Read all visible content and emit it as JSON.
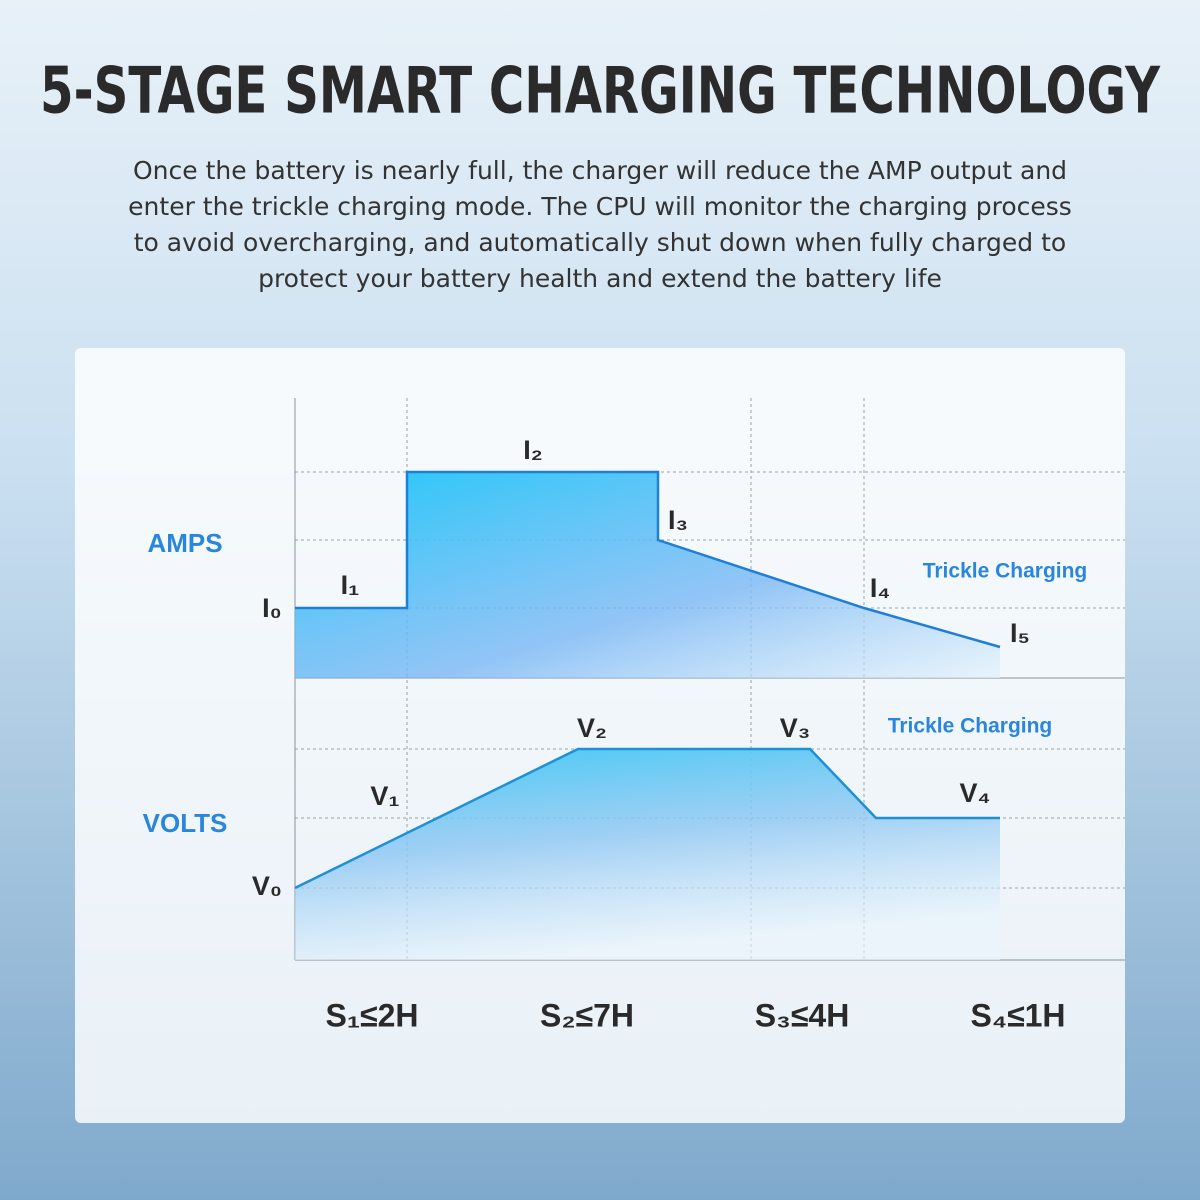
{
  "header": {
    "title": "5-STAGE SMART CHARGING TECHNOLOGY",
    "description": [
      "Once the battery is nearly full, the charger will reduce the AMP output and",
      "enter the trickle charging mode. The CPU will monitor the charging process",
      "to avoid overcharging, and automatically shut down when fully charged to",
      "protect your battery health and extend the battery life"
    ]
  },
  "diagram": {
    "amps": {
      "label": "AMPS",
      "points": [
        "I₀",
        "I₁",
        "I₂",
        "I₃",
        "I₄",
        "I₅"
      ],
      "note": "Trickle Charging"
    },
    "volts": {
      "label": "VOLTS",
      "points": [
        "V₀",
        "V₁",
        "V₂",
        "V₃",
        "V₄"
      ],
      "note": "Trickle Charging"
    },
    "stages": [
      "S₁≤2H",
      "S₂≤7H",
      "S₃≤4H",
      "S₄≤1H"
    ]
  }
}
